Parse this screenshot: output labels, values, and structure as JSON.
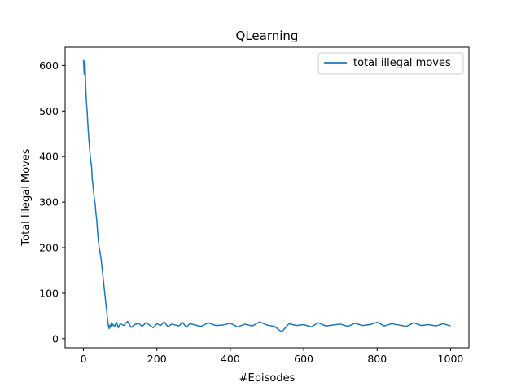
{
  "chart_data": {
    "type": "line",
    "title": "QLearning",
    "xlabel": "#Episodes",
    "ylabel": "Total Illegal Moves",
    "xlim": [
      -50,
      1050
    ],
    "ylim": [
      -20,
      640
    ],
    "xticks": [
      0,
      200,
      400,
      600,
      800,
      1000
    ],
    "yticks": [
      0,
      100,
      200,
      300,
      400,
      500,
      600
    ],
    "xtick_labels": [
      "0",
      "200",
      "400",
      "600",
      "800",
      "1000"
    ],
    "ytick_labels": [
      "0",
      "100",
      "200",
      "300",
      "400",
      "500",
      "600"
    ],
    "legend_position": "top-right",
    "grid": false,
    "series": [
      {
        "name": "total illegal moves",
        "color": "#1f77b4",
        "x": [
          0,
          2,
          4,
          6,
          8,
          10,
          12,
          14,
          16,
          18,
          20,
          22,
          24,
          26,
          28,
          30,
          32,
          34,
          36,
          38,
          40,
          42,
          44,
          46,
          48,
          50,
          52,
          54,
          56,
          58,
          60,
          62,
          64,
          66,
          68,
          70,
          72,
          74,
          76,
          78,
          80,
          85,
          90,
          95,
          100,
          110,
          120,
          130,
          140,
          150,
          160,
          170,
          180,
          190,
          200,
          210,
          220,
          230,
          240,
          250,
          260,
          270,
          280,
          290,
          300,
          320,
          340,
          360,
          380,
          400,
          420,
          440,
          460,
          480,
          500,
          520,
          540,
          560,
          580,
          600,
          620,
          640,
          660,
          680,
          700,
          720,
          740,
          760,
          780,
          800,
          820,
          840,
          860,
          880,
          900,
          920,
          940,
          960,
          980,
          1000
        ],
        "y": [
          612,
          580,
          610,
          555,
          520,
          500,
          470,
          445,
          425,
          405,
          390,
          378,
          350,
          335,
          320,
          305,
          295,
          275,
          262,
          240,
          220,
          205,
          195,
          185,
          175,
          160,
          145,
          130,
          115,
          100,
          85,
          70,
          55,
          40,
          28,
          22,
          30,
          25,
          35,
          28,
          32,
          27,
          36,
          24,
          33,
          29,
          38,
          25,
          31,
          34,
          27,
          35,
          30,
          24,
          33,
          29,
          37,
          26,
          32,
          30,
          28,
          36,
          25,
          33,
          31,
          27,
          35,
          29,
          30,
          34,
          26,
          32,
          28,
          37,
          30,
          27,
          15,
          33,
          29,
          31,
          26,
          35,
          28,
          30,
          32,
          27,
          34,
          29,
          31,
          36,
          28,
          33,
          30,
          27,
          35,
          29,
          31,
          28,
          33,
          28
        ]
      }
    ]
  }
}
